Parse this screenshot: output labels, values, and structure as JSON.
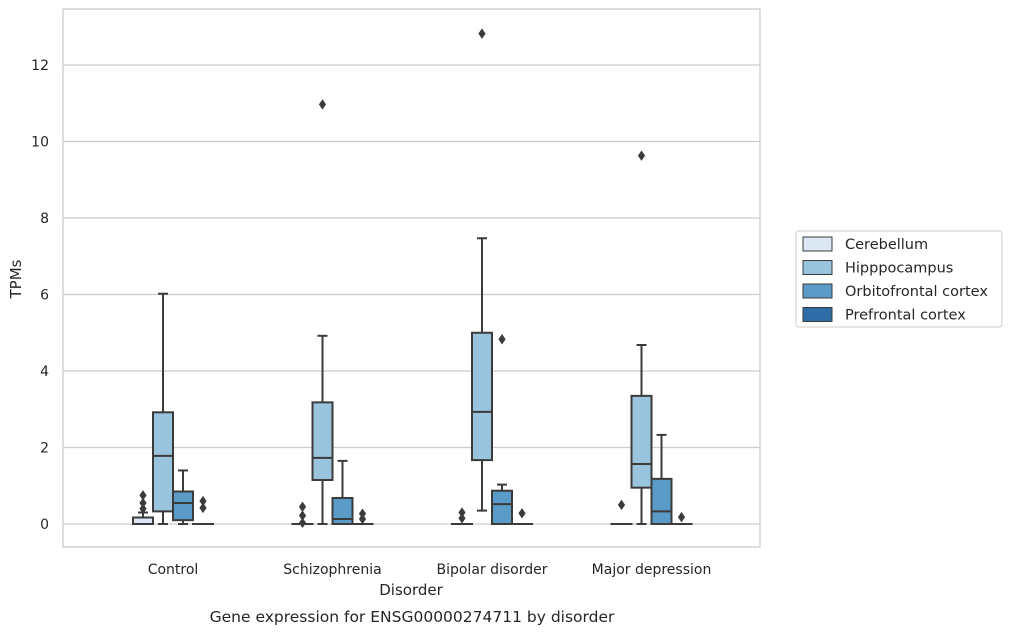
{
  "chart_data": {
    "type": "box",
    "title": "",
    "caption": "Gene expression for ENSG00000274711 by disorder",
    "xlabel": "Disorder",
    "ylabel": "TPMs",
    "ylim": [
      -0.62,
      13.6
    ],
    "yticks": [
      0,
      2,
      4,
      6,
      8,
      10,
      12
    ],
    "grid": "horizontal",
    "legend_position": "right",
    "categories": [
      "Control",
      "Schizophrenia",
      "Bipolar disorder",
      "Major depression"
    ],
    "series": [
      {
        "name": "Cerebellum",
        "color": "#dbe7f2",
        "boxes": [
          {
            "whislo": 0,
            "q1": 0,
            "med": 0,
            "q3": 0.17,
            "whishi": 0.3,
            "fliers": [
              0.4,
              0.55,
              0.75
            ]
          },
          {
            "whislo": 0,
            "q1": 0,
            "med": 0,
            "q3": 0,
            "whishi": 0,
            "fliers": [
              0.03,
              0.22,
              0.45
            ]
          },
          {
            "whislo": 0,
            "q1": 0,
            "med": 0,
            "q3": 0,
            "whishi": 0,
            "fliers": [
              0.15,
              0.3
            ]
          },
          {
            "whislo": 0,
            "q1": 0,
            "med": 0,
            "q3": 0,
            "whishi": 0,
            "fliers": [
              0.5
            ]
          }
        ]
      },
      {
        "name": "Hipppocampus",
        "color": "#9ac3dd",
        "boxes": [
          {
            "whislo": 0,
            "q1": 0.33,
            "med": 1.78,
            "q3": 2.92,
            "whishi": 6.02,
            "fliers": []
          },
          {
            "whislo": 0,
            "q1": 1.15,
            "med": 1.73,
            "q3": 3.18,
            "whishi": 4.92,
            "fliers": [
              10.97
            ]
          },
          {
            "whislo": 0.35,
            "q1": 1.67,
            "med": 2.93,
            "q3": 5.0,
            "whishi": 7.47,
            "fliers": [
              12.82
            ]
          },
          {
            "whislo": 0,
            "q1": 0.95,
            "med": 1.57,
            "q3": 3.35,
            "whishi": 4.68,
            "fliers": [
              9.63
            ]
          }
        ]
      },
      {
        "name": "Orbitofrontal cortex",
        "color": "#5b9bc8",
        "boxes": [
          {
            "whislo": 0,
            "q1": 0.1,
            "med": 0.55,
            "q3": 0.85,
            "whishi": 1.4,
            "fliers": []
          },
          {
            "whislo": 0,
            "q1": 0,
            "med": 0.13,
            "q3": 0.68,
            "whishi": 1.65,
            "fliers": []
          },
          {
            "whislo": 0,
            "q1": 0,
            "med": 0.52,
            "q3": 0.87,
            "whishi": 1.03,
            "fliers": [
              4.83
            ]
          },
          {
            "whislo": 0,
            "q1": 0,
            "med": 0.33,
            "q3": 1.18,
            "whishi": 2.33,
            "fliers": []
          }
        ]
      },
      {
        "name": "Prefrontal cortex",
        "color": "#2f6da7",
        "boxes": [
          {
            "whislo": 0,
            "q1": 0,
            "med": 0,
            "q3": 0,
            "whishi": 0,
            "fliers": [
              0.42,
              0.6
            ]
          },
          {
            "whislo": 0,
            "q1": 0,
            "med": 0,
            "q3": 0,
            "whishi": 0,
            "fliers": [
              0.13,
              0.27
            ]
          },
          {
            "whislo": 0,
            "q1": 0,
            "med": 0,
            "q3": 0,
            "whishi": 0,
            "fliers": [
              0.28
            ]
          },
          {
            "whislo": 0,
            "q1": 0,
            "med": 0,
            "q3": 0,
            "whishi": 0,
            "fliers": [
              0.18
            ]
          }
        ]
      }
    ]
  }
}
